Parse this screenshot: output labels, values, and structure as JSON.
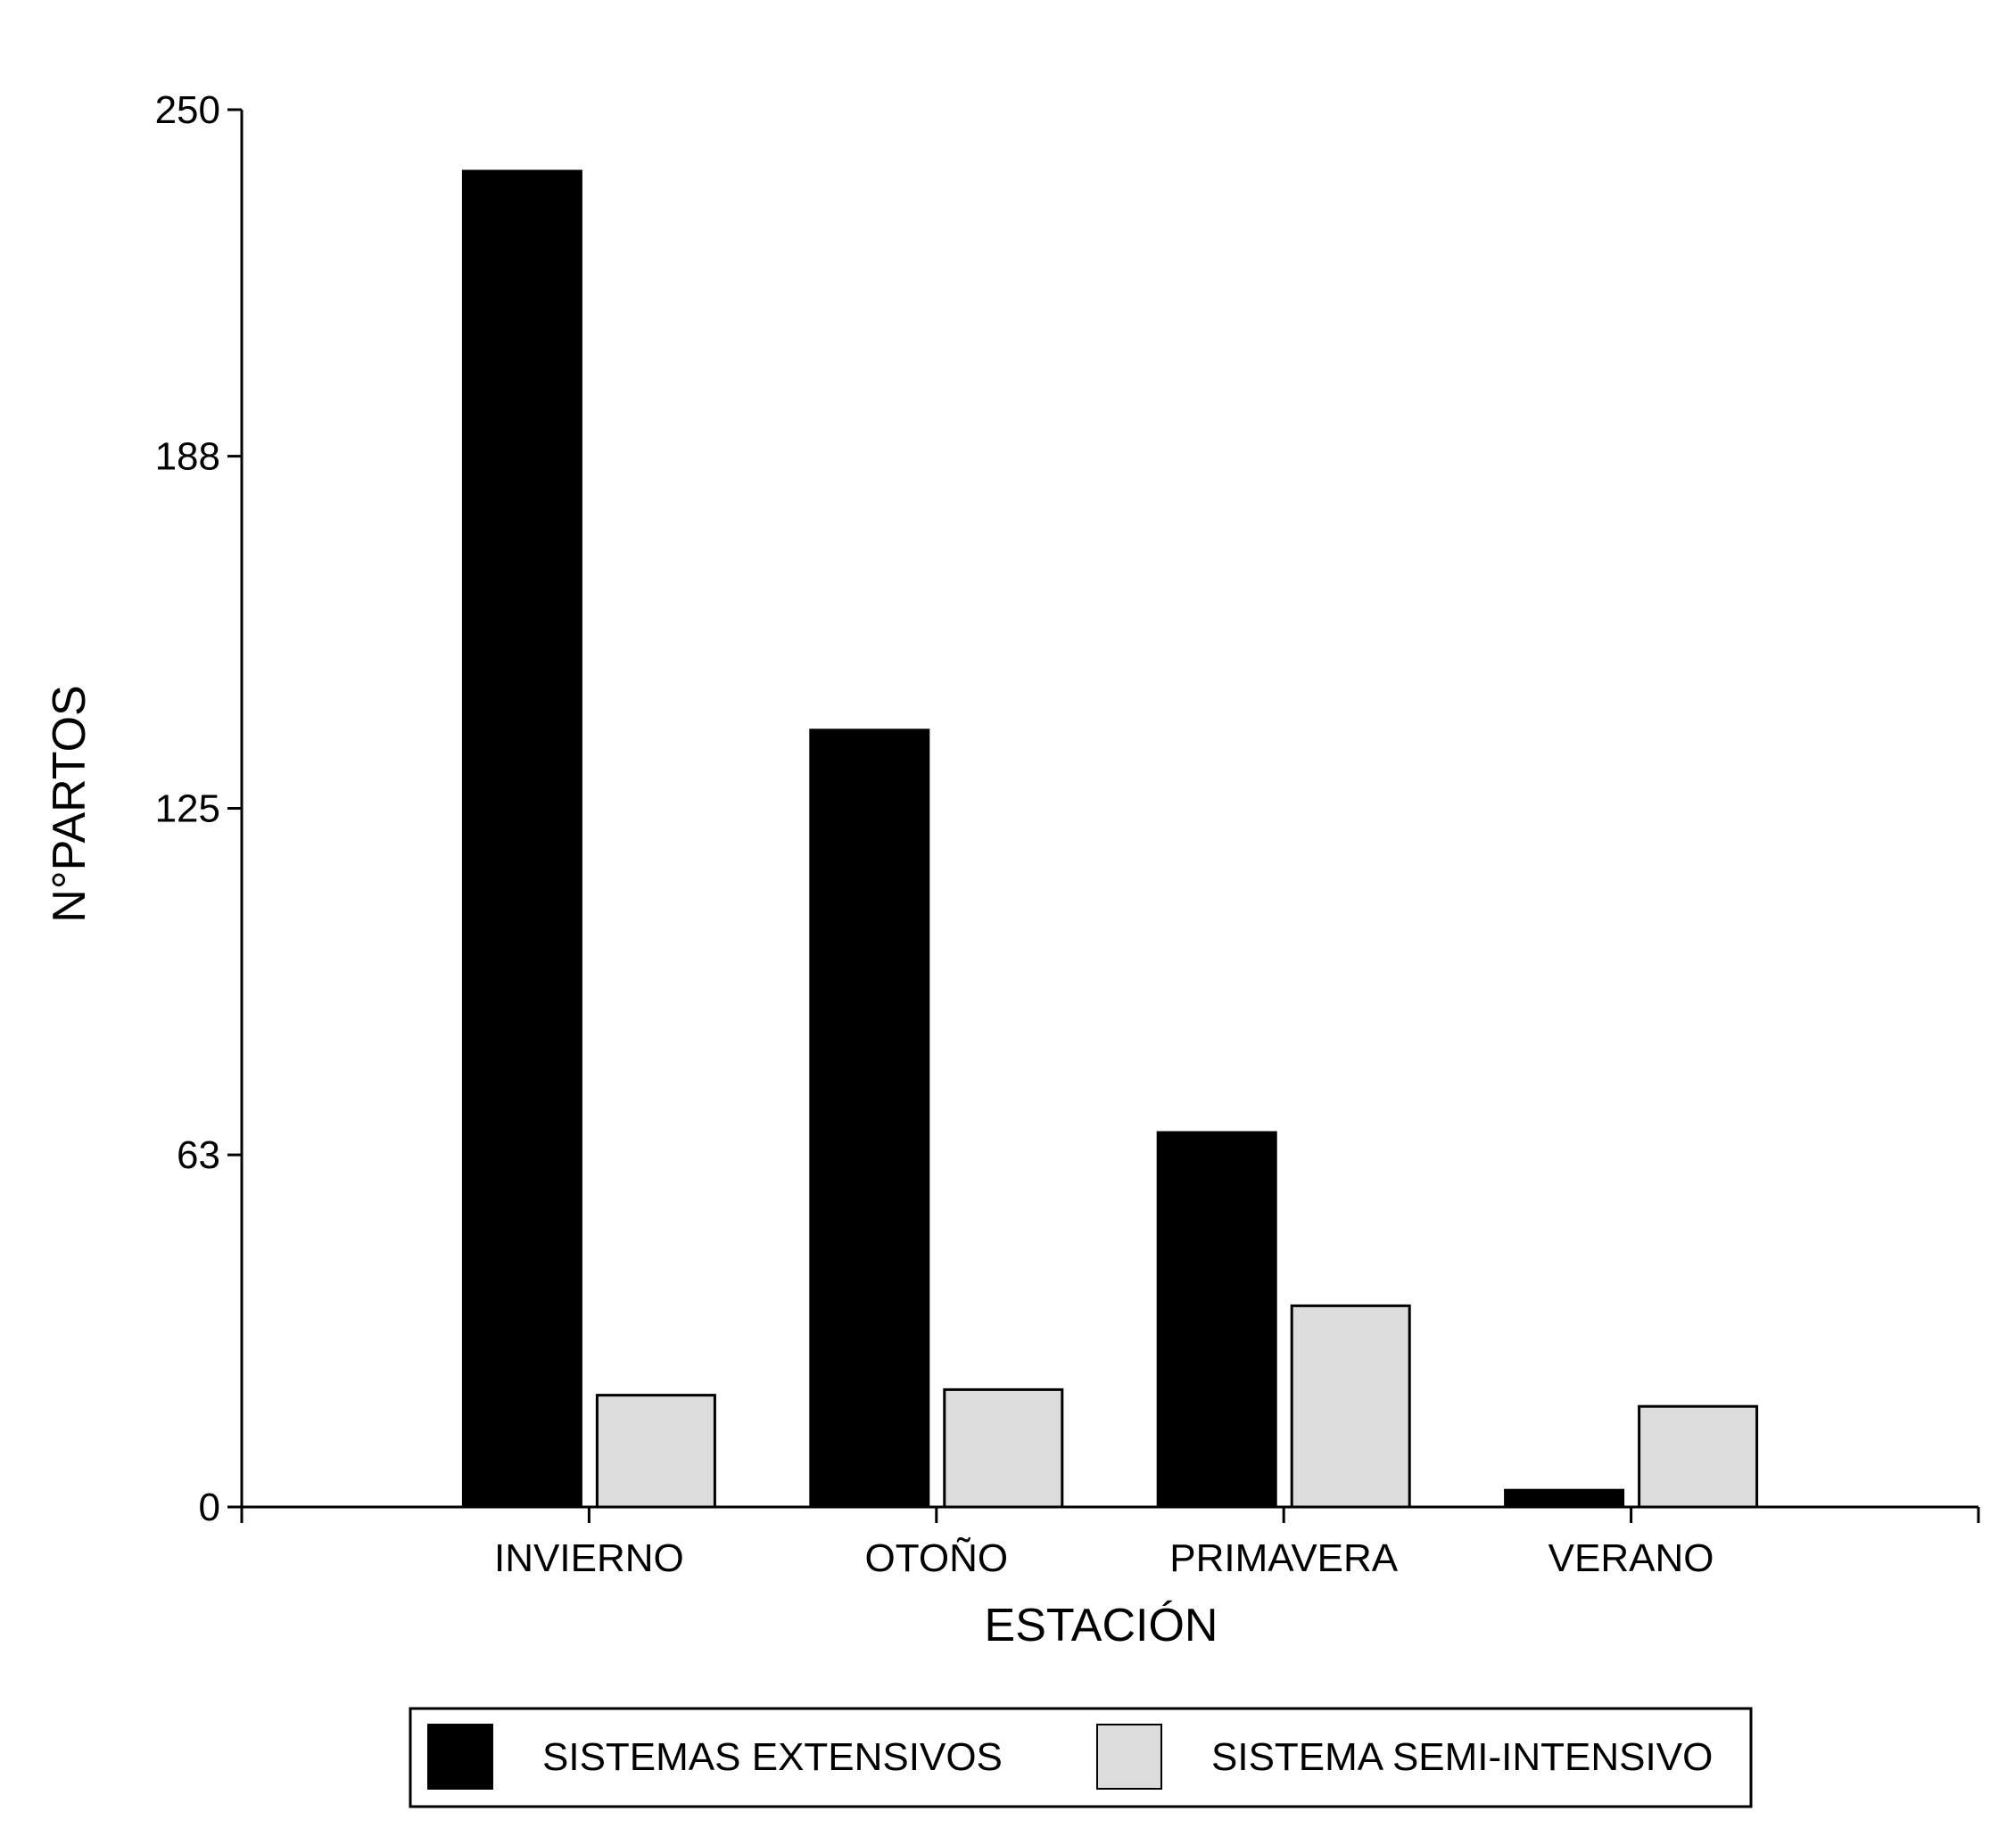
{
  "chart_data": {
    "type": "bar",
    "title": "",
    "xlabel": "ESTACIÓN",
    "ylabel": "N°PARTOS",
    "ylim": [
      0,
      250
    ],
    "yticks": [
      0,
      63,
      125,
      188,
      250
    ],
    "categories": [
      "INVIERNO",
      "OTOÑO",
      "PRIMAVERA",
      "VERANO"
    ],
    "series": [
      {
        "name": "SISTEMAS EXTENSIVOS",
        "values": [
          239,
          139,
          67,
          3
        ],
        "color": "#000000"
      },
      {
        "name": "SISTEMA SEMI-INTENSIVO",
        "values": [
          20,
          21,
          36,
          18
        ],
        "color": "#dcdcdc"
      }
    ],
    "grid": false,
    "legend_position": "bottom"
  }
}
